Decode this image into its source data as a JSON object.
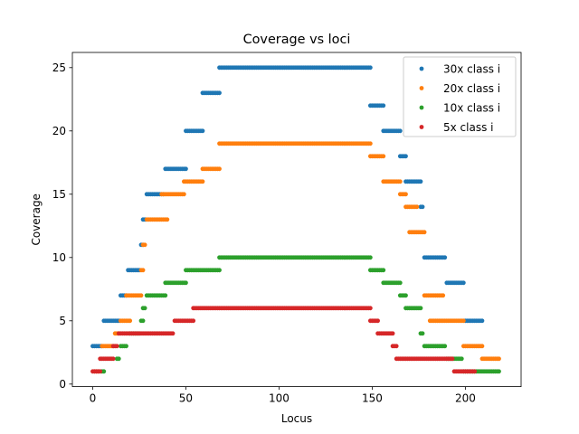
{
  "chart_data": {
    "type": "scatter",
    "title": "Coverage vs loci",
    "xlabel": "Locus",
    "ylabel": "Coverage",
    "xlim": [
      -10.9,
      229.9
    ],
    "ylim": [
      -0.2,
      26.2
    ],
    "xticks": [
      0,
      50,
      100,
      150,
      200
    ],
    "yticks": [
      0,
      5,
      10,
      15,
      20,
      25
    ],
    "grid": false,
    "legend_position": "top-right",
    "series": [
      {
        "name": "30x class i",
        "color": "#1f77b4",
        "segments": [
          {
            "x": [
              0,
              5
            ],
            "y": 3
          },
          {
            "x": [
              6,
              14
            ],
            "y": 5
          },
          {
            "x": [
              15,
              18
            ],
            "y": 7
          },
          {
            "x": [
              19,
              25
            ],
            "y": 9
          },
          {
            "x": [
              26,
              27
            ],
            "y": 11
          },
          {
            "x": [
              27,
              28
            ],
            "y": 13
          },
          {
            "x": [
              29,
              38
            ],
            "y": 15
          },
          {
            "x": [
              39,
              50
            ],
            "y": 17
          },
          {
            "x": [
              50,
              59
            ],
            "y": 20
          },
          {
            "x": [
              59,
              68
            ],
            "y": 23
          },
          {
            "x": [
              68,
              149
            ],
            "y": 25
          },
          {
            "x": [
              149,
              156
            ],
            "y": 22
          },
          {
            "x": [
              156,
              165
            ],
            "y": 20
          },
          {
            "x": [
              165,
              168
            ],
            "y": 18
          },
          {
            "x": [
              168,
              176
            ],
            "y": 16
          },
          {
            "x": [
              176,
              177
            ],
            "y": 14
          },
          {
            "x": [
              178,
              189
            ],
            "y": 10
          },
          {
            "x": [
              190,
              199
            ],
            "y": 8
          },
          {
            "x": [
              200,
              209
            ],
            "y": 5
          }
        ]
      },
      {
        "name": "20x class i",
        "color": "#ff7f0e",
        "segments": [
          {
            "x": [
              1,
              3
            ],
            "y": 1
          },
          {
            "x": [
              5,
              11
            ],
            "y": 3
          },
          {
            "x": [
              12,
              14
            ],
            "y": 4
          },
          {
            "x": [
              15,
              20
            ],
            "y": 5
          },
          {
            "x": [
              18,
              26
            ],
            "y": 7
          },
          {
            "x": [
              26,
              27
            ],
            "y": 9
          },
          {
            "x": [
              27,
              28
            ],
            "y": 11
          },
          {
            "x": [
              29,
              40
            ],
            "y": 13
          },
          {
            "x": [
              37,
              49
            ],
            "y": 15
          },
          {
            "x": [
              49,
              59
            ],
            "y": 16
          },
          {
            "x": [
              59,
              68
            ],
            "y": 17
          },
          {
            "x": [
              68,
              149
            ],
            "y": 19
          },
          {
            "x": [
              149,
              156
            ],
            "y": 18
          },
          {
            "x": [
              156,
              165
            ],
            "y": 16
          },
          {
            "x": [
              165,
              168
            ],
            "y": 15
          },
          {
            "x": [
              168,
              174
            ],
            "y": 14
          },
          {
            "x": [
              170,
              178
            ],
            "y": 12
          },
          {
            "x": [
              178,
              188
            ],
            "y": 7
          },
          {
            "x": [
              181,
              199
            ],
            "y": 5
          },
          {
            "x": [
              199,
              209
            ],
            "y": 3
          },
          {
            "x": [
              209,
              218
            ],
            "y": 2
          }
        ]
      },
      {
        "name": "10x class i",
        "color": "#2ca02c",
        "segments": [
          {
            "x": [
              5,
              6
            ],
            "y": 1
          },
          {
            "x": [
              13,
              14
            ],
            "y": 2
          },
          {
            "x": [
              15,
              18
            ],
            "y": 3
          },
          {
            "x": [
              20,
              25
            ],
            "y": 4
          },
          {
            "x": [
              26,
              27
            ],
            "y": 5
          },
          {
            "x": [
              27,
              28
            ],
            "y": 6
          },
          {
            "x": [
              29,
              39
            ],
            "y": 7
          },
          {
            "x": [
              39,
              50
            ],
            "y": 8
          },
          {
            "x": [
              50,
              68
            ],
            "y": 9
          },
          {
            "x": [
              68,
              149
            ],
            "y": 10
          },
          {
            "x": [
              149,
              156
            ],
            "y": 9
          },
          {
            "x": [
              156,
              165
            ],
            "y": 8
          },
          {
            "x": [
              165,
              168
            ],
            "y": 7
          },
          {
            "x": [
              168,
              176
            ],
            "y": 6
          },
          {
            "x": [
              176,
              177
            ],
            "y": 4
          },
          {
            "x": [
              178,
              189
            ],
            "y": 3
          },
          {
            "x": [
              190,
              198
            ],
            "y": 2
          },
          {
            "x": [
              199,
              218
            ],
            "y": 1
          }
        ]
      },
      {
        "name": "5x class i",
        "color": "#d62728",
        "segments": [
          {
            "x": [
              0,
              4
            ],
            "y": 1
          },
          {
            "x": [
              4,
              11
            ],
            "y": 2
          },
          {
            "x": [
              11,
              13
            ],
            "y": 3
          },
          {
            "x": [
              14,
              43
            ],
            "y": 4
          },
          {
            "x": [
              44,
              54
            ],
            "y": 5
          },
          {
            "x": [
              54,
              149
            ],
            "y": 6
          },
          {
            "x": [
              149,
              153
            ],
            "y": 5
          },
          {
            "x": [
              153,
              161
            ],
            "y": 4
          },
          {
            "x": [
              161,
              163
            ],
            "y": 3
          },
          {
            "x": [
              163,
              193
            ],
            "y": 2
          },
          {
            "x": [
              194,
              205
            ],
            "y": 1
          }
        ]
      }
    ]
  }
}
